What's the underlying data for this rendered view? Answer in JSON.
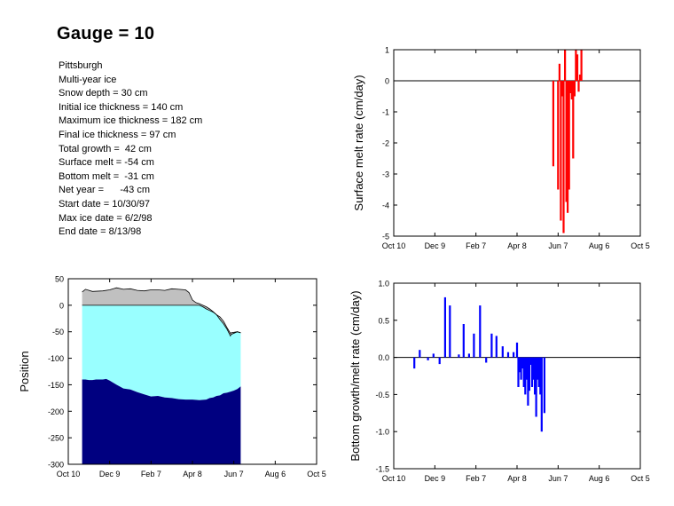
{
  "header": {
    "title": "Gauge = 10"
  },
  "info_lines": [
    "Pittsburgh",
    "Multi-year ice",
    "Snow depth = 30 cm",
    "Initial ice thickness = 140 cm",
    "Maximum ice thickness = 182 cm",
    "Final ice thickness = 97 cm",
    "Total growth =  42 cm",
    "Surface melt = -54 cm",
    "Bottom melt =  -31 cm",
    "Net year =      -43 cm",
    "Start date = 10/30/97",
    "Max ice date = 6/2/98",
    "End date = 8/13/98"
  ],
  "chart_data": [
    {
      "id": "position",
      "type": "area",
      "xlabel": "",
      "ylabel": "Position",
      "x_tick_labels": [
        "Oct 10",
        "Dec 9",
        "Feb 7",
        "Apr 8",
        "Jun 7",
        "Aug 6",
        "Oct 5"
      ],
      "xlim": [
        0,
        360
      ],
      "ylim": [
        -300,
        50
      ],
      "y_ticks": [
        50,
        0,
        -50,
        -100,
        -150,
        -200,
        -250,
        -300
      ],
      "colors": {
        "snow": "#c0c0c0",
        "ice": "#99ffff",
        "water": "#000080"
      },
      "series": [
        {
          "x": [
            20,
            25,
            35,
            50,
            60,
            70,
            80,
            90,
            100,
            110,
            120,
            130,
            140,
            150,
            160,
            170,
            175,
            180,
            185,
            190,
            195,
            200,
            205,
            210,
            215,
            220,
            225,
            230,
            235,
            236,
            245,
            250
          ],
          "values": [
            25,
            30,
            26,
            27,
            29,
            33,
            30,
            31,
            28,
            27,
            29,
            29,
            28,
            31,
            30,
            29,
            24,
            10,
            5,
            3,
            0,
            -3,
            -7,
            -12,
            -18,
            -22,
            -30,
            -42,
            -53,
            -52,
            -50,
            -52
          ]
        },
        {
          "x": [
            20,
            25,
            35,
            50,
            60,
            70,
            80,
            90,
            100,
            110,
            120,
            130,
            140,
            150,
            160,
            170,
            180,
            185,
            190,
            195,
            200,
            205,
            210,
            215,
            220,
            225,
            230,
            235,
            236,
            245,
            250
          ],
          "values": [
            0,
            0,
            0,
            0,
            0,
            0,
            0,
            0,
            0,
            0,
            0,
            0,
            0,
            0,
            0,
            0,
            0,
            0,
            0,
            -3,
            -7,
            -10,
            -13,
            -18,
            -27,
            -35,
            -45,
            -58,
            -55,
            -50,
            -52
          ]
        },
        {
          "x": [
            20,
            25,
            30,
            35,
            40,
            50,
            55,
            60,
            70,
            80,
            90,
            100,
            110,
            120,
            130,
            140,
            150,
            160,
            170,
            180,
            190,
            200,
            205,
            210,
            215,
            220,
            225,
            230,
            235,
            240,
            245,
            250
          ],
          "values": [
            -140,
            -140,
            -141,
            -141,
            -140,
            -140,
            -139,
            -142,
            -150,
            -157,
            -159,
            -164,
            -168,
            -172,
            -171,
            -174,
            -175,
            -177,
            -178,
            -178,
            -179,
            -178,
            -175,
            -174,
            -171,
            -170,
            -166,
            -165,
            -163,
            -161,
            -158,
            -153
          ]
        }
      ]
    },
    {
      "id": "surface",
      "type": "bar",
      "xlabel": "",
      "ylabel": "Surface melt rate (cm/day)",
      "x_tick_labels": [
        "Oct 10",
        "Dec 9",
        "Feb 7",
        "Apr 8",
        "Jun 7",
        "Aug 6",
        "Oct 5"
      ],
      "xlim": [
        0,
        360
      ],
      "ylim": [
        -5,
        1
      ],
      "y_ticks": [
        1,
        0,
        -1,
        -2,
        -3,
        -4,
        -5
      ],
      "color": "#ff0000",
      "x": [
        233,
        240,
        242,
        244,
        246,
        248,
        250,
        252,
        254,
        256,
        258,
        260,
        262,
        264,
        266,
        268,
        270,
        272,
        274
      ],
      "values": [
        -2.75,
        -3.5,
        0.55,
        -4.5,
        -0.5,
        -4.9,
        1.0,
        -3.9,
        -4.25,
        -3.5,
        -0.4,
        -0.6,
        -2.5,
        -0.5,
        1.0,
        0.85,
        -0.35,
        0.2,
        1.0
      ]
    },
    {
      "id": "bottom",
      "type": "bar",
      "xlabel": "",
      "ylabel": "Bottom growth/melt rate (cm/day)",
      "x_tick_labels": [
        "Oct 10",
        "Dec 9",
        "Feb 7",
        "Apr 8",
        "Jun 7",
        "Aug 6",
        "Oct 5"
      ],
      "xlim": [
        0,
        360
      ],
      "ylim": [
        -1.5,
        1.0
      ],
      "y_ticks": [
        1.0,
        0.5,
        0.0,
        -0.5,
        -1.0,
        -1.5
      ],
      "color": "#0000ff",
      "x": [
        30,
        38,
        50,
        58,
        67,
        75,
        82,
        95,
        102,
        110,
        117,
        126,
        135,
        143,
        150,
        159,
        167,
        175,
        180,
        182,
        184,
        186,
        188,
        190,
        192,
        194,
        196,
        198,
        200,
        202,
        204,
        206,
        208,
        210,
        212,
        214,
        216,
        220
      ],
      "values": [
        -0.15,
        0.1,
        -0.04,
        0.05,
        -0.09,
        0.81,
        0.7,
        0.04,
        0.45,
        0.05,
        0.32,
        0.7,
        -0.07,
        0.32,
        0.29,
        0.15,
        0.07,
        0.07,
        0.2,
        -0.4,
        -0.2,
        -0.3,
        -0.15,
        -0.4,
        -0.5,
        -0.3,
        -0.65,
        -0.45,
        -0.1,
        -0.4,
        -0.3,
        -0.5,
        -0.8,
        -0.3,
        -0.4,
        -0.5,
        -1.0,
        -0.75
      ]
    }
  ]
}
